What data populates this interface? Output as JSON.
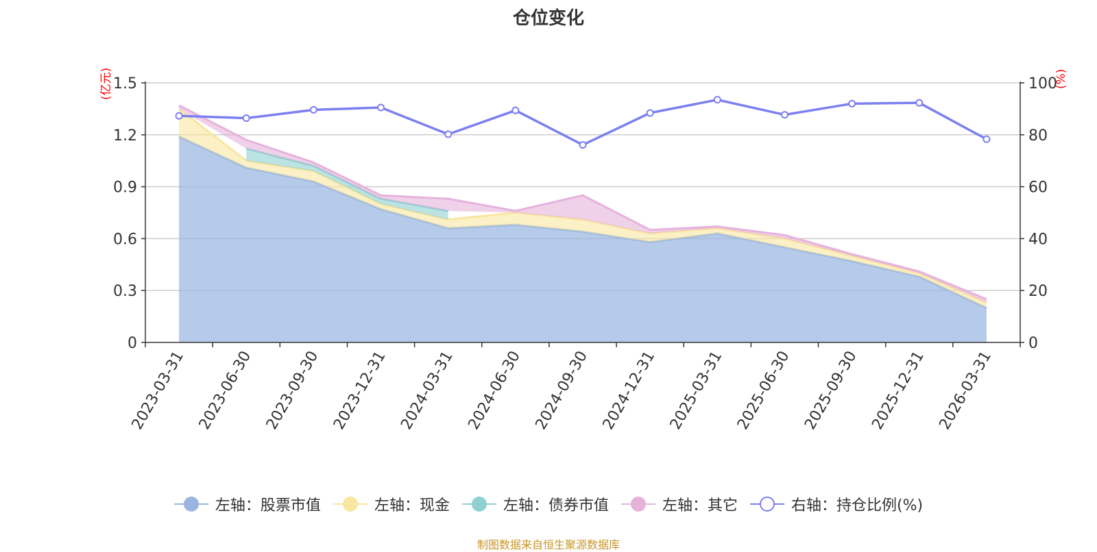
{
  "title": "仓位变化",
  "left_unit": "(亿元)",
  "right_unit": "(%)",
  "source": "制图数据来自恒生聚源数据库",
  "colors": {
    "stock": "#9ab6e0",
    "cash": "#f9e6a0",
    "bond": "#8fd0d0",
    "other": "#e6b2dc",
    "ratio": "#7b7ff0",
    "grid": "#cccccc",
    "axis": "#333333"
  },
  "legend": [
    {
      "key": "stock",
      "label": "左轴：股票市值",
      "icon": "filled-circle"
    },
    {
      "key": "cash",
      "label": "左轴：现金",
      "icon": "filled-circle"
    },
    {
      "key": "bond",
      "label": "左轴：债券市值",
      "icon": "filled-circle"
    },
    {
      "key": "other",
      "label": "左轴：其它",
      "icon": "filled-circle"
    },
    {
      "key": "ratio",
      "label": "右轴：持仓比例(%)",
      "icon": "hollow-circle"
    }
  ],
  "chart_data": {
    "type": "area",
    "categories": [
      "2023-03-31",
      "2023-06-30",
      "2023-09-30",
      "2023-12-31",
      "2024-03-31",
      "2024-06-30",
      "2024-09-30",
      "2024-12-31",
      "2025-03-31",
      "2025-06-30",
      "2025-09-30",
      "2025-12-31",
      "2026-03-31"
    ],
    "left_axis": {
      "min": 0,
      "max": 1.5,
      "ticks": [
        "0",
        "0.3",
        "0.6",
        "0.9",
        "1.2",
        "1.5"
      ]
    },
    "right_axis": {
      "min": 0,
      "max": 100,
      "ticks": [
        "0",
        "20",
        "40",
        "60",
        "80",
        "100"
      ]
    },
    "stacked_series": [
      {
        "key": "stock",
        "name": "左轴：股票市值",
        "values": [
          1.19,
          1.01,
          0.93,
          0.77,
          0.66,
          0.68,
          0.64,
          0.58,
          0.63,
          0.55,
          0.47,
          0.38,
          0.2
        ]
      },
      {
        "key": "cash",
        "name": "左轴：现金",
        "values": [
          0.16,
          0.04,
          0.06,
          0.03,
          0.05,
          0.07,
          0.07,
          0.05,
          0.03,
          0.05,
          0.03,
          0.02,
          0.03
        ]
      },
      {
        "key": "bond",
        "name": "左轴：债券市值",
        "values": [
          null,
          0.07,
          0.03,
          0.03,
          0.05,
          null,
          null,
          null,
          null,
          null,
          null,
          null,
          null
        ]
      },
      {
        "key": "other",
        "name": "左轴：其它",
        "values": [
          0.02,
          0.05,
          0.02,
          0.02,
          0.07,
          0.01,
          0.14,
          0.02,
          0.01,
          0.02,
          0.01,
          0.01,
          0.02
        ]
      }
    ],
    "line_series": {
      "key": "ratio",
      "name": "右轴：持仓比例(%)",
      "values": [
        87.3,
        86.4,
        89.6,
        90.5,
        80.2,
        89.4,
        76.1,
        88.4,
        93.5,
        87.7,
        92.0,
        92.3,
        78.3
      ]
    }
  }
}
